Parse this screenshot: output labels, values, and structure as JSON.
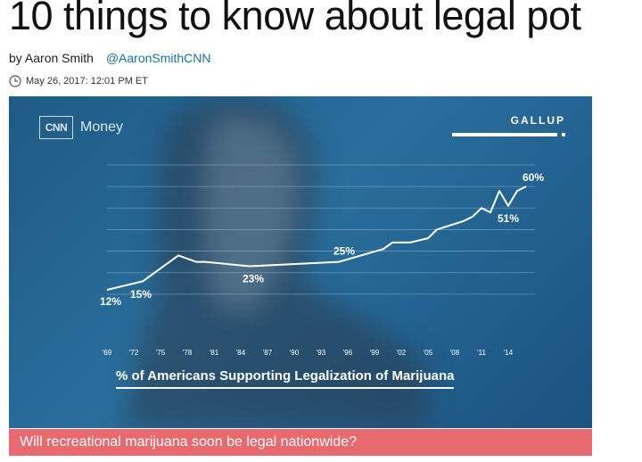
{
  "article": {
    "headline": "10 things to know about legal pot",
    "author": "by Aaron Smith",
    "author_handle": "@AaronSmithCNN",
    "timestamp": "May 26, 2017: 12:01 PM ET"
  },
  "media": {
    "brand_logo_text": "CNN",
    "brand_name": "Money",
    "source": "GALLUP",
    "caption": "Will recreational marijuana soon be legal nationwide?"
  },
  "chart_data": {
    "type": "line",
    "title": "% of Americans Supporting Legalization of Marijuana",
    "x": [
      1969,
      1972,
      1973,
      1977,
      1979,
      1980,
      1985,
      1995,
      2000,
      2001,
      2003,
      2005,
      2006,
      2009,
      2010,
      2011,
      2012,
      2013,
      2014,
      2015,
      2016
    ],
    "y": [
      12,
      15,
      16,
      28,
      25,
      25,
      23,
      25,
      31,
      34,
      34,
      36,
      40,
      44,
      46,
      50,
      48,
      58,
      51,
      58,
      60
    ],
    "xticks": [
      "'69",
      "'72",
      "'75",
      "'78",
      "'81",
      "'84",
      "'87",
      "'90",
      "'93",
      "'96",
      "'99",
      "'02",
      "'05",
      "'08",
      "'11",
      "'14"
    ],
    "xtick_years": [
      1969,
      1972,
      1975,
      1978,
      1981,
      1984,
      1987,
      1990,
      1993,
      1996,
      1999,
      2002,
      2005,
      2008,
      2011,
      2014
    ],
    "annotations": [
      {
        "label": "12%",
        "year": 1969,
        "value": 12
      },
      {
        "label": "15%",
        "year": 1972,
        "value": 15
      },
      {
        "label": "23%",
        "year": 1985,
        "value": 23
      },
      {
        "label": "25%",
        "year": 1995,
        "value": 25
      },
      {
        "label": "51%",
        "year": 2014,
        "value": 51
      },
      {
        "label": "60%",
        "year": 2016,
        "value": 60
      }
    ],
    "ylim": [
      0,
      70
    ],
    "grid": true,
    "colors": {
      "line": "#ffffff",
      "grid": "#9fbfd8"
    }
  }
}
